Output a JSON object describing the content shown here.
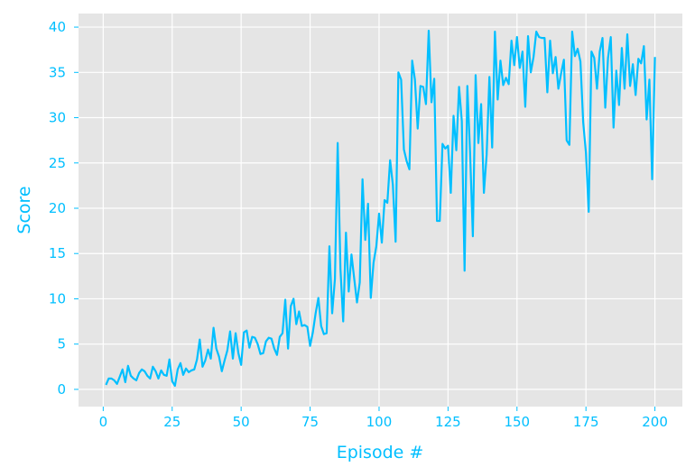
{
  "colors": {
    "accent": "#00bfff",
    "panel": "#e5e5e5",
    "grid": "#ffffff",
    "background": "#ffffff"
  },
  "chart_data": {
    "type": "line",
    "title": "",
    "xlabel": "Episode #",
    "ylabel": "Score",
    "xlim": [
      -8.95,
      209.95
    ],
    "ylim": [
      -1.9,
      41.5
    ],
    "xticks": [
      0,
      25,
      50,
      75,
      100,
      125,
      150,
      175,
      200
    ],
    "yticks": [
      0,
      5,
      10,
      15,
      20,
      25,
      30,
      35,
      40
    ],
    "grid": true,
    "legend": "none",
    "series": [
      {
        "color": "#00bfff",
        "x": [
          1,
          2,
          3,
          4,
          5,
          6,
          7,
          8,
          9,
          10,
          11,
          12,
          13,
          14,
          15,
          16,
          17,
          18,
          19,
          20,
          21,
          22,
          23,
          24,
          25,
          26,
          27,
          28,
          29,
          30,
          31,
          32,
          33,
          34,
          35,
          36,
          37,
          38,
          39,
          40,
          41,
          42,
          43,
          44,
          45,
          46,
          47,
          48,
          49,
          50,
          51,
          52,
          53,
          54,
          55,
          56,
          57,
          58,
          59,
          60,
          61,
          62,
          63,
          64,
          65,
          66,
          67,
          68,
          69,
          70,
          71,
          72,
          73,
          74,
          75,
          76,
          77,
          78,
          79,
          80,
          81,
          82,
          83,
          84,
          85,
          86,
          87,
          88,
          89,
          90,
          91,
          92,
          93,
          94,
          95,
          96,
          97,
          98,
          99,
          100,
          101,
          102,
          103,
          104,
          105,
          106,
          107,
          108,
          109,
          110,
          111,
          112,
          113,
          114,
          115,
          116,
          117,
          118,
          119,
          120,
          121,
          122,
          123,
          124,
          125,
          126,
          127,
          128,
          129,
          130,
          131,
          132,
          133,
          134,
          135,
          136,
          137,
          138,
          139,
          140,
          141,
          142,
          143,
          144,
          145,
          146,
          147,
          148,
          149,
          150,
          151,
          152,
          153,
          154,
          155,
          156,
          157,
          158,
          159,
          160,
          161,
          162,
          163,
          164,
          165,
          166,
          167,
          168,
          169,
          170,
          171,
          172,
          173,
          174,
          175,
          176,
          177,
          178,
          179,
          180,
          181,
          182,
          183,
          184,
          185,
          186,
          187,
          188,
          189,
          190,
          191,
          192,
          193,
          194,
          195,
          196,
          197,
          198,
          199,
          200
        ],
        "y": [
          0.5,
          1.2,
          1.2,
          1.0,
          0.6,
          1.4,
          2.2,
          0.8,
          2.6,
          1.5,
          1.2,
          1.0,
          1.8,
          2.2,
          2.0,
          1.5,
          1.2,
          2.5,
          2.0,
          1.2,
          2.1,
          1.6,
          1.5,
          3.3,
          0.9,
          0.4,
          2.2,
          2.9,
          1.6,
          2.3,
          1.9,
          2.1,
          2.2,
          3.3,
          5.5,
          2.5,
          3.2,
          4.4,
          3.4,
          6.8,
          4.5,
          3.6,
          2.0,
          3.2,
          4.3,
          6.4,
          3.4,
          6.2,
          4.0,
          2.7,
          6.3,
          6.5,
          4.6,
          5.8,
          5.7,
          5.0,
          3.9,
          4.0,
          5.3,
          5.7,
          5.6,
          4.5,
          3.8,
          5.8,
          6.2,
          9.9,
          4.5,
          9.2,
          10.0,
          7.2,
          8.6,
          7.0,
          7.1,
          6.9,
          4.8,
          6.3,
          8.4,
          10.1,
          7.0,
          6.1,
          6.2,
          15.8,
          8.4,
          12.2,
          27.2,
          13.3,
          7.5,
          17.3,
          10.8,
          14.9,
          12.2,
          9.6,
          11.8,
          23.2,
          16.5,
          20.5,
          10.1,
          14.0,
          15.8,
          19.4,
          16.2,
          20.9,
          20.6,
          25.3,
          22.6,
          16.3,
          35.0,
          34.2,
          26.5,
          25.2,
          24.3,
          36.3,
          34.2,
          28.8,
          33.5,
          33.4,
          31.5,
          39.6,
          31.7,
          34.3,
          18.6,
          18.6,
          27.1,
          26.6,
          26.9,
          21.7,
          30.2,
          26.4,
          33.4,
          29.6,
          13.1,
          33.5,
          26.1,
          16.9,
          34.7,
          27.2,
          31.5,
          21.7,
          25.9,
          34.5,
          26.7,
          39.5,
          32.0,
          36.3,
          33.6,
          34.4,
          33.7,
          38.5,
          35.8,
          38.9,
          35.5,
          37.3,
          31.2,
          39.0,
          35.0,
          36.7,
          39.5,
          38.9,
          38.8,
          38.8,
          32.8,
          38.5,
          34.9,
          36.7,
          33.2,
          34.9,
          36.4,
          27.5,
          27.0,
          39.5,
          36.8,
          37.6,
          36.2,
          29.5,
          26.1,
          19.6,
          37.3,
          36.6,
          33.2,
          37.3,
          38.8,
          31.1,
          36.6,
          38.9,
          28.9,
          35.2,
          31.4,
          37.7,
          33.2,
          39.2,
          33.5,
          35.9,
          32.5,
          36.5,
          36.0,
          37.9,
          29.8,
          34.2,
          23.2,
          36.7
        ]
      }
    ]
  }
}
